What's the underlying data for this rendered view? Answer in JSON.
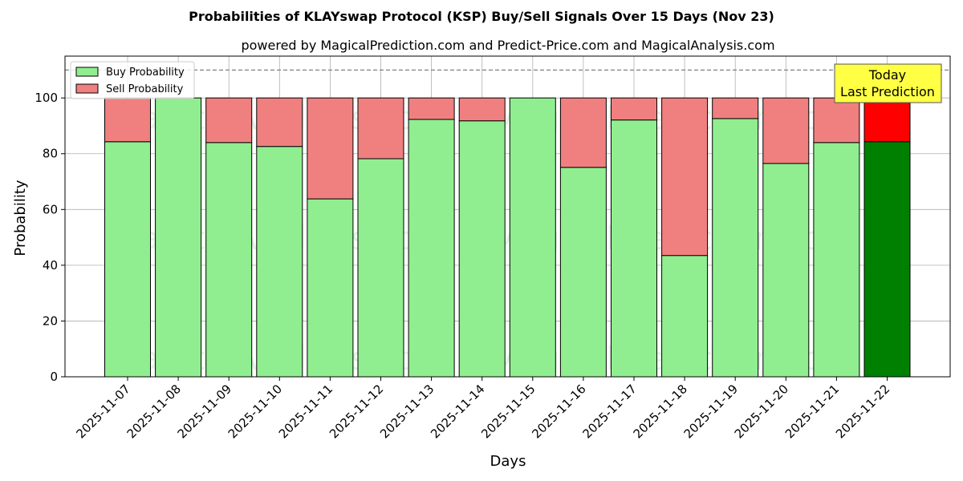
{
  "chart_data": {
    "type": "bar",
    "stacked": true,
    "title": "Probabilities of KLAYswap Protocol (KSP) Buy/Sell Signals Over 15 Days (Nov 23)",
    "subtitle": "powered by MagicalPrediction.com and Predict-Price.com and MagicalAnalysis.com",
    "xlabel": "Days",
    "ylabel": "Probability",
    "ylim": [
      0,
      115
    ],
    "yticks": [
      0,
      20,
      40,
      60,
      80,
      100
    ],
    "reference_line": 110,
    "grid": true,
    "legend_position": "top-left",
    "categories": [
      "2025-11-07",
      "2025-11-08",
      "2025-11-09",
      "2025-11-10",
      "2025-11-11",
      "2025-11-12",
      "2025-11-13",
      "2025-11-14",
      "2025-11-15",
      "2025-11-16",
      "2025-11-17",
      "2025-11-18",
      "2025-11-19",
      "2025-11-20",
      "2025-11-21",
      "2025-11-22"
    ],
    "series": [
      {
        "name": "Buy Probability",
        "color": "#90ee90",
        "values": [
          84.3,
          100,
          84.0,
          82.6,
          63.8,
          78.2,
          92.3,
          91.8,
          100,
          75.1,
          92.1,
          43.5,
          92.6,
          76.5,
          84.0,
          84.3
        ]
      },
      {
        "name": "Sell Probability",
        "color": "#f08080",
        "values": [
          15.7,
          0,
          16.0,
          17.4,
          36.2,
          21.8,
          7.7,
          8.2,
          0,
          24.9,
          7.9,
          56.5,
          7.4,
          23.5,
          16.0,
          15.7
        ]
      }
    ],
    "highlight": {
      "index": 15,
      "buy_color": "#008000",
      "sell_color": "#ff0000"
    },
    "annotation": {
      "lines": [
        "Today",
        "Last Prediction"
      ],
      "background": "#ffff44"
    },
    "watermarks": [
      "MagicalAnalysis.com",
      "MagicalPrediction.com"
    ]
  }
}
